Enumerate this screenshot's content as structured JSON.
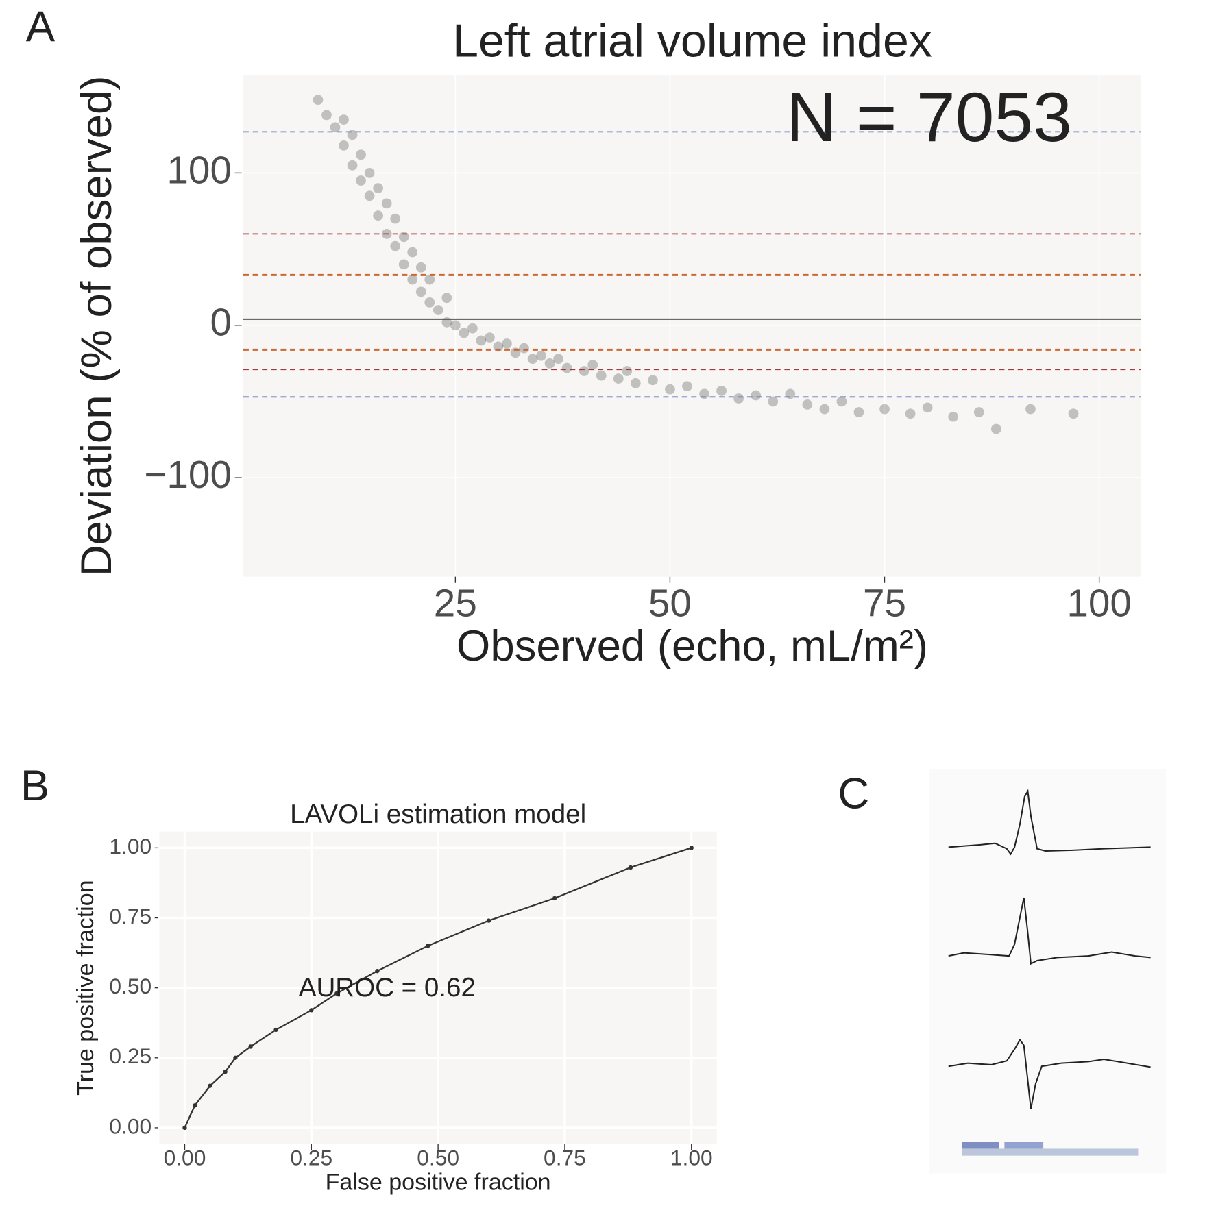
{
  "chart_data": [
    {
      "type": "scatter",
      "panel": "A",
      "title": "Left atrial volume index",
      "annotation": "N = 7053",
      "x_label": "Observed (echo, mL/m²)",
      "y_label": "Deviation (% of observed)",
      "xlim": [
        0.3,
        104.9
      ],
      "ylim": [
        -165,
        164
      ],
      "xticks": [
        25,
        50,
        75,
        100
      ],
      "yticks": [
        {
          "value": -100,
          "label": "−100"
        },
        0,
        100
      ],
      "grid": true,
      "color": "#000000",
      "x": [
        9,
        10,
        11,
        12,
        12,
        13,
        13,
        14,
        14,
        15,
        15,
        16,
        16,
        17,
        17,
        18,
        18,
        19,
        19,
        20,
        20,
        21,
        21,
        22,
        22,
        23,
        24,
        24,
        25,
        26,
        27,
        28,
        29,
        30,
        31,
        32,
        33,
        34,
        35,
        36,
        37,
        38,
        40,
        41,
        42,
        44,
        45,
        46,
        48,
        50,
        52,
        54,
        56,
        58,
        60,
        62,
        64,
        66,
        68,
        70,
        72,
        75,
        78,
        80,
        83,
        86,
        88,
        92,
        97
      ],
      "values": [
        148,
        138,
        130,
        118,
        135,
        105,
        125,
        95,
        112,
        85,
        100,
        72,
        90,
        60,
        80,
        52,
        70,
        40,
        58,
        30,
        48,
        22,
        38,
        15,
        30,
        10,
        2,
        18,
        0,
        -5,
        -2,
        -10,
        -8,
        -14,
        -12,
        -18,
        -15,
        -22,
        -20,
        -25,
        -22,
        -28,
        -30,
        -26,
        -33,
        -35,
        -30,
        -38,
        -36,
        -42,
        -40,
        -45,
        -43,
        -48,
        -46,
        -50,
        -45,
        -52,
        -55,
        -50,
        -57,
        -55,
        -58,
        -54,
        -60,
        -57,
        -68,
        -55,
        -58
      ],
      "hlines": [
        {
          "value": 127,
          "color": "#6a7fc1",
          "style": "dashed"
        },
        {
          "value": 60,
          "color": "#a33a3a",
          "style": "dashed"
        },
        {
          "value": 33,
          "color": "#c96a35",
          "style": "dashed"
        },
        {
          "value": 4,
          "color": "#555555",
          "style": "solid"
        },
        {
          "value": -16,
          "color": "#c96a35",
          "style": "dashed"
        },
        {
          "value": -29,
          "color": "#a33a3a",
          "style": "dashed"
        },
        {
          "value": -47,
          "color": "#6a7fc1",
          "style": "dashed"
        }
      ]
    },
    {
      "type": "line",
      "panel": "B",
      "title": "LAVOLi estimation model",
      "annotation": "AUROC = 0.62",
      "x_label": "False positive fraction",
      "y_label": "True positive fraction",
      "xlim": [
        -0.05,
        1.05
      ],
      "ylim": [
        -0.058,
        1.058
      ],
      "xticks": [
        {
          "value": 0,
          "label": "0.00"
        },
        {
          "value": 0.25,
          "label": "0.25"
        },
        {
          "value": 0.5,
          "label": "0.50"
        },
        {
          "value": 0.75,
          "label": "0.75"
        },
        {
          "value": 1,
          "label": "1.00"
        }
      ],
      "yticks": [
        {
          "value": 0,
          "label": "0.00"
        },
        {
          "value": 0.25,
          "label": "0.25"
        },
        {
          "value": 0.5,
          "label": "0.50"
        },
        {
          "value": 0.75,
          "label": "0.75"
        },
        {
          "value": 1,
          "label": "1.00"
        }
      ],
      "grid": true,
      "color": "#333333",
      "x": [
        0,
        0.02,
        0.05,
        0.08,
        0.1,
        0.13,
        0.18,
        0.25,
        0.3,
        0.38,
        0.48,
        0.6,
        0.73,
        0.88,
        1
      ],
      "values": [
        0,
        0.08,
        0.15,
        0.2,
        0.25,
        0.29,
        0.35,
        0.42,
        0.48,
        0.56,
        0.65,
        0.74,
        0.82,
        0.93,
        1
      ]
    }
  ],
  "panel_c": {
    "label": "C"
  }
}
